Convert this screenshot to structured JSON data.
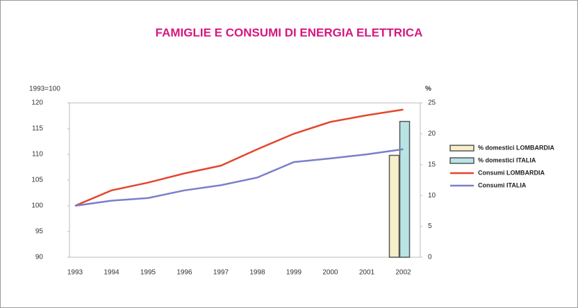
{
  "chart_data": {
    "type": "line",
    "title": "FAMIGLIE E CONSUMI DI ENERGIA ELETTRICA",
    "y_label": "1993=100",
    "y2_label": "%",
    "categories": [
      "1993",
      "1994",
      "1995",
      "1996",
      "1997",
      "1998",
      "1999",
      "2000",
      "2001",
      "2002"
    ],
    "series": [
      {
        "name": "% domestici LOMBARDIA",
        "type": "bar",
        "axis": "y2",
        "color": "#f7efc8",
        "values": [
          null,
          null,
          null,
          null,
          null,
          null,
          null,
          null,
          null,
          16.5
        ]
      },
      {
        "name": "% domestici ITALIA",
        "type": "bar",
        "axis": "y2",
        "color": "#b8e4e6",
        "values": [
          null,
          null,
          null,
          null,
          null,
          null,
          null,
          null,
          null,
          22
        ]
      },
      {
        "name": "Consumi LOMBARDIA",
        "type": "line",
        "color": "#e5452d",
        "values": [
          100,
          103,
          104.5,
          106.3,
          107.8,
          111,
          114,
          116.3,
          117.6,
          118.7
        ]
      },
      {
        "name": "Consumi ITALIA",
        "type": "line",
        "color": "#7a7fc9",
        "values": [
          100,
          101,
          101.5,
          103,
          104,
          105.5,
          108.5,
          109.2,
          110,
          111
        ]
      }
    ],
    "ylim": [
      90,
      120
    ],
    "yticks": [
      90,
      95,
      100,
      105,
      110,
      115,
      120
    ],
    "y2lim": [
      0,
      25
    ],
    "y2ticks": [
      0,
      5,
      10,
      15,
      20,
      25
    ],
    "grid": false
  }
}
